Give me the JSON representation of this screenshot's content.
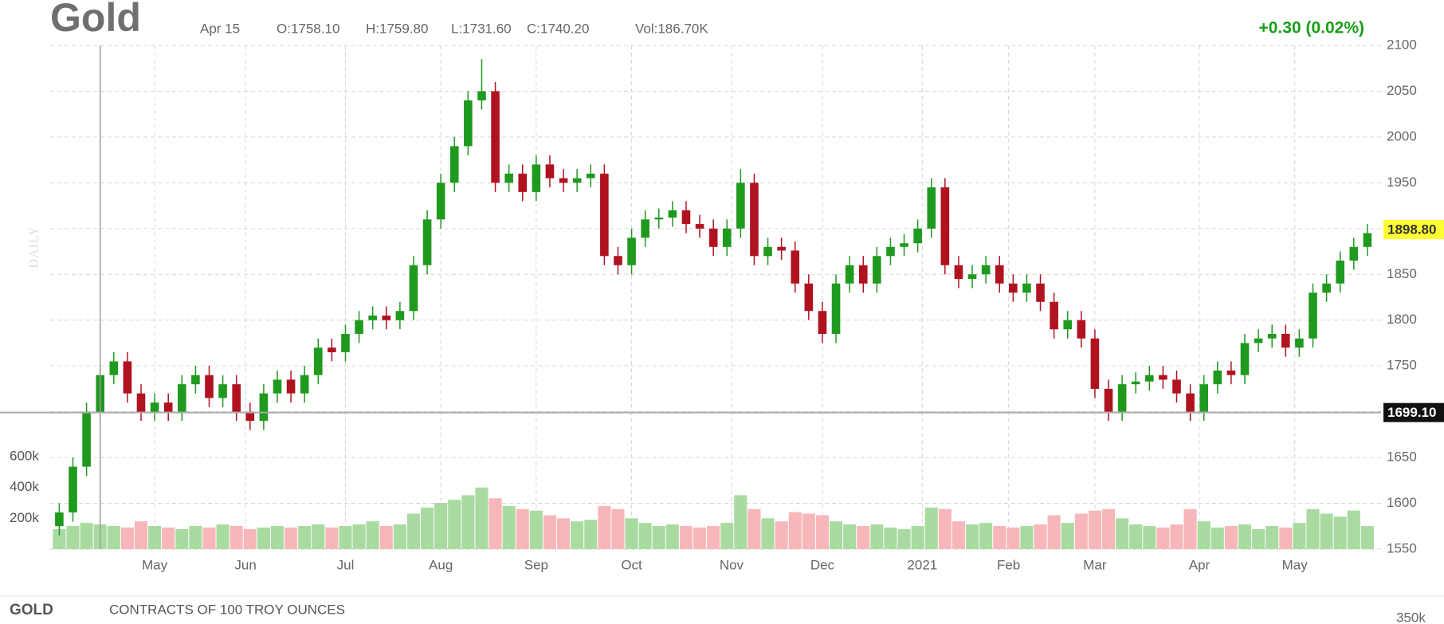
{
  "header": {
    "title": "Gold",
    "date": "Apr 15",
    "open": "O:1758.10",
    "high": "H:1759.80",
    "low": "L:1731.60",
    "close": "C:1740.20",
    "volume": "Vol:186.70K",
    "change": "+0.30 (0.02%)",
    "period": "DAILY"
  },
  "footer": {
    "symbol": "GOLD",
    "description": "CONTRACTS OF 100 TROY OUNCES",
    "axis_label": "350k"
  },
  "chart_data": {
    "type": "candlestick",
    "x": [
      0,
      3,
      6,
      9,
      12,
      15,
      18,
      21,
      24,
      27,
      30,
      33,
      36,
      39,
      42,
      45,
      48,
      51,
      54,
      57,
      60,
      63,
      66,
      69,
      72,
      75,
      78,
      81,
      84,
      87,
      90,
      93,
      96,
      99,
      102,
      105,
      108,
      111,
      114,
      117,
      120,
      123,
      126,
      129,
      132,
      135,
      138,
      141,
      144,
      147,
      150,
      153,
      156,
      159,
      162,
      165,
      168,
      171,
      174,
      177,
      180,
      183,
      186,
      189,
      192,
      195,
      198,
      201,
      204,
      207,
      210,
      213,
      216,
      219,
      222,
      225,
      228,
      231,
      234,
      237,
      240,
      243,
      246,
      249,
      252,
      255,
      258,
      261,
      264,
      267,
      270,
      273,
      276,
      279,
      282,
      285,
      288
    ],
    "open": [
      1575,
      1590,
      1640,
      1700,
      1740,
      1755,
      1720,
      1700,
      1710,
      1700,
      1730,
      1740,
      1715,
      1730,
      1700,
      1690,
      1720,
      1735,
      1720,
      1740,
      1770,
      1765,
      1785,
      1800,
      1805,
      1800,
      1810,
      1860,
      1910,
      1950,
      1990,
      2040,
      2050,
      1950,
      1960,
      1940,
      1970,
      1955,
      1950,
      1955,
      1960,
      1870,
      1860,
      1890,
      1910,
      1912,
      1920,
      1905,
      1900,
      1880,
      1900,
      1950,
      1870,
      1880,
      1876,
      1840,
      1810,
      1785,
      1840,
      1860,
      1840,
      1870,
      1880,
      1884,
      1900,
      1945,
      1860,
      1845,
      1850,
      1860,
      1840,
      1830,
      1840,
      1820,
      1790,
      1800,
      1780,
      1725,
      1700,
      1730,
      1733,
      1740,
      1735,
      1720,
      1700,
      1730,
      1745,
      1740,
      1775,
      1780,
      1785,
      1770,
      1780,
      1830,
      1840,
      1865,
      1880
    ],
    "high": [
      1600,
      1650,
      1710,
      1750,
      1765,
      1765,
      1730,
      1720,
      1720,
      1740,
      1750,
      1750,
      1740,
      1740,
      1710,
      1730,
      1745,
      1745,
      1750,
      1780,
      1780,
      1795,
      1810,
      1815,
      1815,
      1820,
      1870,
      1920,
      1960,
      2000,
      2050,
      2085,
      2060,
      1970,
      1970,
      1980,
      1980,
      1965,
      1965,
      1970,
      1970,
      1880,
      1900,
      1920,
      1922,
      1930,
      1930,
      1915,
      1910,
      1910,
      1965,
      1960,
      1890,
      1890,
      1886,
      1850,
      1820,
      1850,
      1870,
      1870,
      1880,
      1890,
      1894,
      1910,
      1955,
      1955,
      1870,
      1860,
      1870,
      1870,
      1850,
      1850,
      1850,
      1830,
      1810,
      1810,
      1790,
      1735,
      1740,
      1743,
      1750,
      1750,
      1745,
      1730,
      1740,
      1755,
      1755,
      1785,
      1790,
      1795,
      1795,
      1790,
      1840,
      1850,
      1875,
      1890,
      1905
    ],
    "low": [
      1565,
      1580,
      1630,
      1690,
      1730,
      1710,
      1690,
      1690,
      1690,
      1690,
      1720,
      1705,
      1705,
      1690,
      1680,
      1680,
      1710,
      1710,
      1710,
      1730,
      1755,
      1755,
      1775,
      1790,
      1790,
      1790,
      1800,
      1850,
      1900,
      1940,
      1980,
      2030,
      1940,
      1940,
      1930,
      1930,
      1945,
      1940,
      1940,
      1945,
      1860,
      1850,
      1850,
      1880,
      1900,
      1902,
      1895,
      1890,
      1870,
      1870,
      1890,
      1860,
      1860,
      1866,
      1830,
      1800,
      1775,
      1775,
      1830,
      1830,
      1830,
      1860,
      1870,
      1874,
      1890,
      1850,
      1835,
      1835,
      1840,
      1830,
      1820,
      1820,
      1810,
      1780,
      1780,
      1770,
      1715,
      1690,
      1690,
      1720,
      1723,
      1725,
      1710,
      1690,
      1690,
      1720,
      1730,
      1730,
      1765,
      1770,
      1760,
      1760,
      1770,
      1820,
      1830,
      1855,
      1870
    ],
    "close": [
      1590,
      1640,
      1700,
      1740,
      1755,
      1720,
      1700,
      1710,
      1700,
      1730,
      1740,
      1715,
      1730,
      1700,
      1690,
      1720,
      1735,
      1720,
      1740,
      1770,
      1765,
      1785,
      1800,
      1805,
      1800,
      1810,
      1860,
      1910,
      1950,
      1990,
      2040,
      2050,
      1950,
      1960,
      1940,
      1970,
      1955,
      1950,
      1955,
      1960,
      1870,
      1860,
      1890,
      1910,
      1912,
      1920,
      1905,
      1900,
      1880,
      1900,
      1950,
      1870,
      1880,
      1876,
      1840,
      1810,
      1785,
      1840,
      1860,
      1840,
      1870,
      1880,
      1884,
      1900,
      1945,
      1860,
      1845,
      1850,
      1860,
      1840,
      1830,
      1840,
      1820,
      1790,
      1800,
      1780,
      1725,
      1700,
      1730,
      1733,
      1740,
      1735,
      1720,
      1700,
      1730,
      1745,
      1740,
      1775,
      1780,
      1785,
      1770,
      1780,
      1830,
      1840,
      1865,
      1880,
      1895
    ],
    "volume": [
      130000,
      150000,
      170000,
      160000,
      150000,
      140000,
      180000,
      150000,
      140000,
      130000,
      150000,
      140000,
      160000,
      150000,
      130000,
      140000,
      150000,
      140000,
      150000,
      160000,
      140000,
      150000,
      160000,
      180000,
      150000,
      160000,
      230000,
      270000,
      300000,
      320000,
      350000,
      400000,
      330000,
      280000,
      260000,
      250000,
      220000,
      200000,
      180000,
      190000,
      280000,
      260000,
      200000,
      170000,
      150000,
      160000,
      150000,
      140000,
      150000,
      170000,
      350000,
      260000,
      200000,
      180000,
      240000,
      230000,
      220000,
      180000,
      160000,
      150000,
      160000,
      140000,
      130000,
      150000,
      270000,
      260000,
      180000,
      160000,
      170000,
      150000,
      140000,
      150000,
      160000,
      220000,
      170000,
      230000,
      250000,
      260000,
      200000,
      160000,
      150000,
      140000,
      160000,
      260000,
      180000,
      140000,
      150000,
      160000,
      130000,
      150000,
      140000,
      170000,
      260000,
      230000,
      210000,
      250000,
      150000
    ],
    "up_color": "#1f9a1f",
    "down_color": "#b01220",
    "up_volume_color": "#a9dba1",
    "down_volume_color": "#f7b7ba",
    "xlim": [
      -2,
      291
    ],
    "xticks": [
      {
        "value": 21,
        "label": "May"
      },
      {
        "value": 41,
        "label": "Jun"
      },
      {
        "value": 63,
        "label": "Jul"
      },
      {
        "value": 84,
        "label": "Aug"
      },
      {
        "value": 105,
        "label": "Sep"
      },
      {
        "value": 126,
        "label": "Oct"
      },
      {
        "value": 148,
        "label": "Nov"
      },
      {
        "value": 168,
        "label": "Dec"
      },
      {
        "value": 190,
        "label": "2021"
      },
      {
        "value": 209,
        "label": "Feb"
      },
      {
        "value": 228,
        "label": "Mar"
      },
      {
        "value": 251,
        "label": "Apr"
      },
      {
        "value": 272,
        "label": "May"
      }
    ],
    "ylim": [
      1550,
      2100
    ],
    "yticks": [
      1550,
      1600,
      1650,
      1700,
      1750,
      1800,
      1850,
      1900,
      1950,
      2000,
      2050,
      2100
    ],
    "y2lim": [
      0,
      3270000
    ],
    "y2ticks": [
      {
        "value": 200000,
        "label": "200k"
      },
      {
        "value": 400000,
        "label": "400k"
      },
      {
        "value": 600000,
        "label": "600k"
      }
    ],
    "grid": true,
    "crosshair": {
      "x": 9,
      "price": {
        "value": 1699.1,
        "label": "1699.10"
      }
    },
    "last_price": {
      "value": 1898.8,
      "label": "1898.80"
    }
  }
}
